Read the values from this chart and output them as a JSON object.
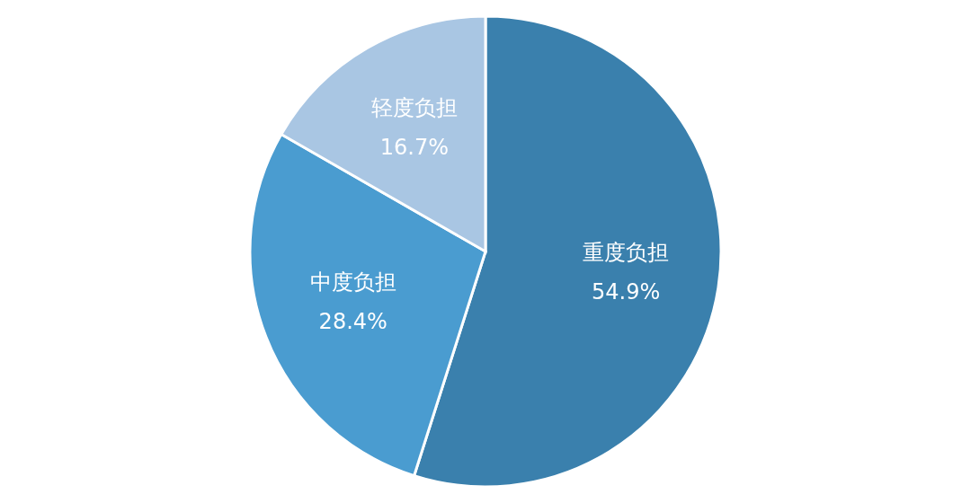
{
  "chart_data": {
    "type": "pie",
    "categories": [
      "重度负担",
      "中度负担",
      "轻度负担"
    ],
    "values": [
      54.9,
      28.4,
      16.7
    ],
    "colors": [
      "#3a80ad",
      "#4a9cd0",
      "#a9c6e3"
    ],
    "value_labels": [
      "54.9%",
      "28.4%",
      "16.7%"
    ],
    "legend": false
  }
}
